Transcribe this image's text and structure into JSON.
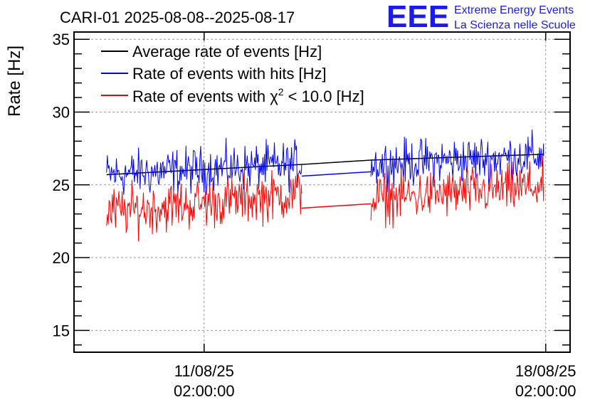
{
  "header": {
    "title": "CARI-01 2025-08-08--2025-08-17",
    "logo_text": "EEE",
    "logo_line1": "Extreme Energy Events",
    "logo_line2": "La Scienza nelle Scuole"
  },
  "colors": {
    "black": "#000000",
    "blue": "#0000ff",
    "red": "#ff0000",
    "logo": "#1a1aee"
  },
  "chart_data": {
    "type": "line",
    "ylabel": "Rate [Hz]",
    "ylim": [
      13.5,
      35.5
    ],
    "yticks": [
      15,
      20,
      25,
      30,
      35
    ],
    "xlim": [
      "2025-08-08 10:00:00",
      "2025-08-18 14:00:00"
    ],
    "xticks": [
      {
        "value": "2025-08-11 02:00:00",
        "label_line1": "11/08/25",
        "label_line2": "02:00:00"
      },
      {
        "value": "2025-08-18 02:00:00",
        "label_line1": "18/08/25",
        "label_line2": "02:00:00"
      }
    ],
    "grid": true,
    "legend_position": "top-left",
    "series": [
      {
        "name": "Average rate of events [Hz]",
        "color": "#000000",
        "segments": [
          {
            "x": [
              "2025-08-09 02:00:00",
              "2025-08-13 02:00:00"
            ],
            "y": [
              25.7,
              26.4
            ],
            "noise": 0.0
          },
          {
            "x": [
              "2025-08-13 02:00:00",
              "2025-08-14 12:00:00"
            ],
            "y": [
              26.4,
              26.7
            ],
            "noise": 0.0
          },
          {
            "x": [
              "2025-08-14 12:00:00",
              "2025-08-18 01:00:00"
            ],
            "y": [
              26.7,
              27.1
            ],
            "noise": 0.0
          }
        ]
      },
      {
        "name": "Rate of events with hits [Hz]",
        "color": "#0000ff",
        "segments": [
          {
            "x": [
              "2025-08-09 02:00:00",
              "2025-08-13 02:00:00"
            ],
            "y": [
              25.7,
              26.4
            ],
            "noise": 1.25
          },
          {
            "x": [
              "2025-08-13 02:00:00",
              "2025-08-14 12:00:00"
            ],
            "y": [
              25.6,
              25.9
            ],
            "noise": 0.0
          },
          {
            "x": [
              "2025-08-14 12:00:00",
              "2025-08-18 01:00:00"
            ],
            "y": [
              26.4,
              27.0
            ],
            "noise": 1.25
          }
        ]
      },
      {
        "name": "Rate of events with χ² < 10.0 [Hz]",
        "color": "#ff0000",
        "segments": [
          {
            "x": [
              "2025-08-09 02:00:00",
              "2025-08-13 02:00:00"
            ],
            "y": [
              23.1,
              24.4
            ],
            "noise": 1.35
          },
          {
            "x": [
              "2025-08-13 02:00:00",
              "2025-08-14 12:00:00"
            ],
            "y": [
              23.4,
              23.7
            ],
            "noise": 0.0
          },
          {
            "x": [
              "2025-08-14 12:00:00",
              "2025-08-18 01:00:00"
            ],
            "y": [
              24.0,
              24.9
            ],
            "noise": 1.35
          }
        ]
      }
    ],
    "legend": [
      {
        "text": "Average rate of events [Hz]",
        "color": "#000000"
      },
      {
        "text": "Rate of events with hits [Hz]",
        "color": "#0000ff"
      },
      {
        "text_before": "Rate of events with χ",
        "sup": "2",
        "text_after": " < 10.0 [Hz]",
        "color": "#ff0000"
      }
    ]
  }
}
